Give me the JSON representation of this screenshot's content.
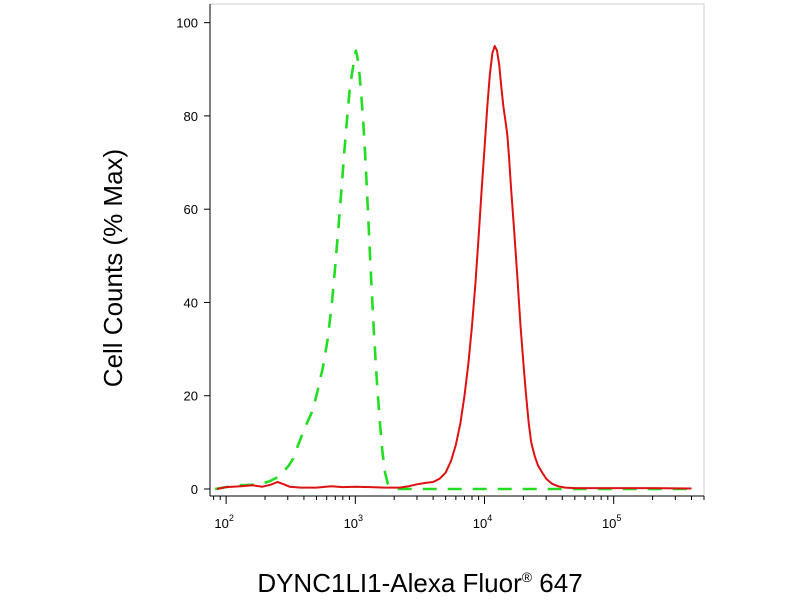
{
  "chart_data": {
    "type": "line",
    "xlabel_main": "DYNC1LI1-Alexa Fluor",
    "xlabel_sup": "®",
    "xlabel_tail": " 647",
    "ylabel": "Cell Counts (% Max)",
    "x_scale": "log",
    "xlim": [
      75,
      500000
    ],
    "ylim": [
      -1.5,
      104
    ],
    "grid": false,
    "y_ticks": [
      {
        "value": 0,
        "label": "0"
      },
      {
        "value": 20,
        "label": "20"
      },
      {
        "value": 40,
        "label": "40"
      },
      {
        "value": 60,
        "label": "60"
      },
      {
        "value": 80,
        "label": "80"
      },
      {
        "value": 100,
        "label": "100"
      }
    ],
    "x_ticks": [
      {
        "value": 100,
        "base": "10",
        "exp": "2"
      },
      {
        "value": 1000,
        "base": "10",
        "exp": "3"
      },
      {
        "value": 10000,
        "base": "10",
        "exp": "4"
      },
      {
        "value": 100000,
        "base": "10",
        "exp": "5"
      }
    ],
    "series": [
      {
        "style": "dashed",
        "color": "#22dd22",
        "points": [
          [
            82,
            0
          ],
          [
            100,
            0.4
          ],
          [
            125,
            0.8
          ],
          [
            155,
            0.9
          ],
          [
            185,
            1.1
          ],
          [
            215,
            1.6
          ],
          [
            245,
            2.4
          ],
          [
            275,
            3.6
          ],
          [
            305,
            5
          ],
          [
            330,
            6.5
          ],
          [
            350,
            8.5
          ],
          [
            380,
            11
          ],
          [
            420,
            14
          ],
          [
            470,
            17
          ],
          [
            510,
            21
          ],
          [
            560,
            26
          ],
          [
            610,
            32
          ],
          [
            660,
            40
          ],
          [
            700,
            48
          ],
          [
            740,
            56
          ],
          [
            780,
            64
          ],
          [
            820,
            72
          ],
          [
            860,
            79
          ],
          [
            900,
            85
          ],
          [
            940,
            89
          ],
          [
            980,
            92
          ],
          [
            1010,
            94
          ],
          [
            1030,
            93
          ],
          [
            1060,
            91
          ],
          [
            1100,
            86
          ],
          [
            1150,
            79
          ],
          [
            1200,
            70
          ],
          [
            1260,
            58
          ],
          [
            1320,
            46
          ],
          [
            1390,
            34
          ],
          [
            1460,
            24
          ],
          [
            1540,
            15
          ],
          [
            1620,
            8
          ],
          [
            1700,
            3.5
          ],
          [
            1780,
            1.2
          ],
          [
            1900,
            0.3
          ],
          [
            2100,
            0
          ],
          [
            4000,
            0
          ],
          [
            10000,
            0
          ],
          [
            30000,
            0
          ],
          [
            100000,
            0
          ],
          [
            400000,
            0
          ]
        ]
      },
      {
        "style": "solid",
        "color": "#dd1111",
        "points": [
          [
            85,
            0
          ],
          [
            100,
            0.4
          ],
          [
            130,
            0.6
          ],
          [
            160,
            0.8
          ],
          [
            190,
            0.5
          ],
          [
            220,
            0.9
          ],
          [
            250,
            1.5
          ],
          [
            275,
            1.1
          ],
          [
            310,
            0.5
          ],
          [
            380,
            0.3
          ],
          [
            500,
            0.3
          ],
          [
            650,
            0.6
          ],
          [
            800,
            0.4
          ],
          [
            1000,
            0.5
          ],
          [
            1300,
            0.4
          ],
          [
            1700,
            0.3
          ],
          [
            2200,
            0.3
          ],
          [
            2600,
            0.6
          ],
          [
            3000,
            1
          ],
          [
            3500,
            1.3
          ],
          [
            4000,
            1.5
          ],
          [
            4500,
            2.2
          ],
          [
            5000,
            3.5
          ],
          [
            5500,
            6
          ],
          [
            6000,
            9.5
          ],
          [
            6500,
            14
          ],
          [
            7000,
            20
          ],
          [
            7500,
            27
          ],
          [
            8000,
            35
          ],
          [
            8500,
            44
          ],
          [
            9000,
            54
          ],
          [
            9500,
            64
          ],
          [
            10000,
            73
          ],
          [
            10500,
            82
          ],
          [
            11000,
            89
          ],
          [
            11500,
            93.5
          ],
          [
            12000,
            95
          ],
          [
            12500,
            94
          ],
          [
            13000,
            91
          ],
          [
            13500,
            86
          ],
          [
            14000,
            82
          ],
          [
            14500,
            79
          ],
          [
            15000,
            76
          ],
          [
            15500,
            71
          ],
          [
            16000,
            65
          ],
          [
            17000,
            55
          ],
          [
            18000,
            45
          ],
          [
            19000,
            35
          ],
          [
            20000,
            27
          ],
          [
            21000,
            20
          ],
          [
            22000,
            14
          ],
          [
            23000,
            10
          ],
          [
            24500,
            7
          ],
          [
            26000,
            5
          ],
          [
            28000,
            3.5
          ],
          [
            30000,
            2.2
          ],
          [
            33000,
            1.2
          ],
          [
            37000,
            0.6
          ],
          [
            42000,
            0.3
          ],
          [
            50000,
            0.2
          ],
          [
            70000,
            0.2
          ],
          [
            100000,
            0.2
          ],
          [
            200000,
            0.2
          ],
          [
            400000,
            0.1
          ]
        ]
      }
    ]
  }
}
